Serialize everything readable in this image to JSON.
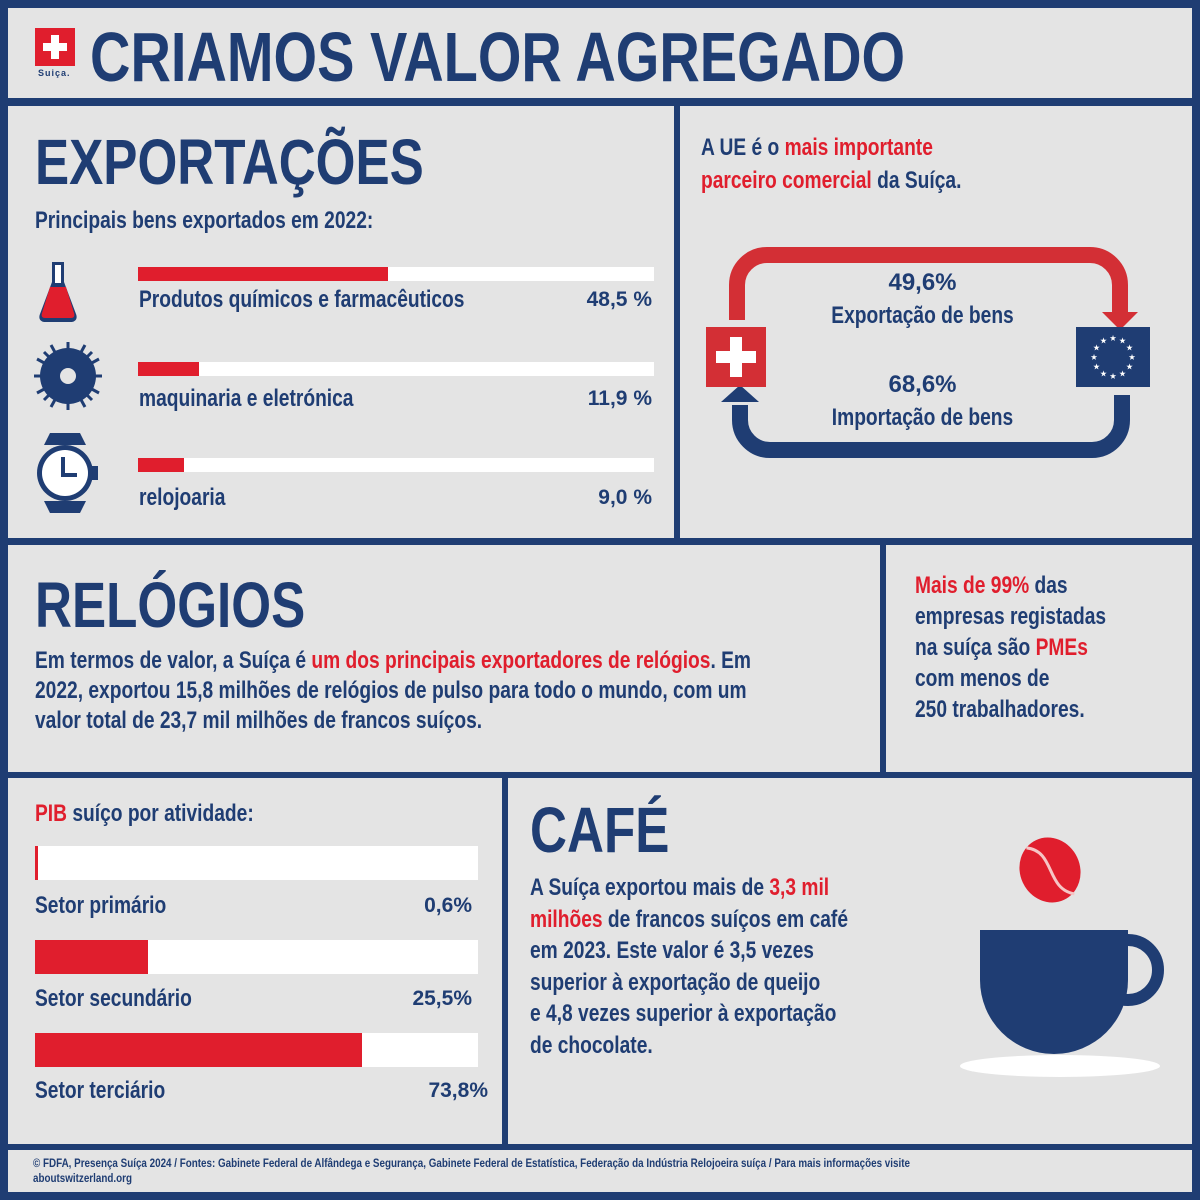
{
  "header": {
    "title": "CRIAMOS VALOR AGREGADO",
    "logo_text": "Suiça."
  },
  "exports": {
    "title": "EXPORTAÇÕES",
    "subtitle": "Principais bens exportados em 2022:",
    "items": [
      {
        "label": "Produtos químicos e farmacêuticos",
        "value": "48,5 %",
        "percent": 48.5,
        "icon": "flask-icon"
      },
      {
        "label": "maquinaria e eletrónica",
        "value": "11,9 %",
        "percent": 11.9,
        "icon": "gear-icon"
      },
      {
        "label": "relojoaria",
        "value": "9,0 %",
        "percent": 9.0,
        "icon": "watch-icon"
      }
    ]
  },
  "eu": {
    "line1_a": "A UE é o ",
    "line1_b": "mais importante",
    "line2_a": "parceiro comercial",
    "line2_b": " da Suíça.",
    "export_value": "49,6%",
    "export_label": "Exportação de bens",
    "import_value": "68,6%",
    "import_label": "Importação de bens"
  },
  "watches": {
    "title": "RELÓGIOS",
    "p1": "Em termos de valor, a Suíça é ",
    "p1_red": "um dos principais exportadores de relógios",
    "p1_end": ". Em",
    "p2": "2022, exportou 15,8 milhões de relógios de pulso para todo o mundo, com um",
    "p3": "valor total de 23,7 mil milhões de francos suíços."
  },
  "sme": {
    "l1_red": "Mais de 99%",
    "l1": " das",
    "l2": "empresas registadas",
    "l3": "na suíça são ",
    "l3_red": "PMEs",
    "l4": "com menos de",
    "l5": "250 trabalhadores."
  },
  "gdp": {
    "title_red": "PIB",
    "title": " suíço por atividade:",
    "items": [
      {
        "label": "Setor primário",
        "value": "0,6%",
        "percent": 0.6
      },
      {
        "label": "Setor secundário",
        "value": "25,5%",
        "percent": 25.5
      },
      {
        "label": "Setor terciário",
        "value": "73,8%",
        "percent": 73.8
      }
    ]
  },
  "coffee": {
    "title": "CAFÉ",
    "l1": "A Suíça exportou mais de ",
    "l1_red": "3,3 mil",
    "l2_red": "milhões",
    "l2": " de francos suíços em café",
    "l3": "em 2023. Este valor é 3,5 vezes",
    "l4": "superior à exportação de queijo",
    "l5": "e 4,8 vezes superior à exportação",
    "l6": "de chocolate."
  },
  "footer": {
    "line1": "© FDFA, Presença Suíça 2024 / Fontes: Gabinete Federal de Alfândega e Segurança, Gabinete Federal de Estatística, Federação da Indústria Relojoeira suíça / Para mais informações visite",
    "line2": "aboutswitzerland.org"
  },
  "colors": {
    "navy": "#1f3d73",
    "red": "#e01e2d",
    "background": "#e4e4e4"
  }
}
